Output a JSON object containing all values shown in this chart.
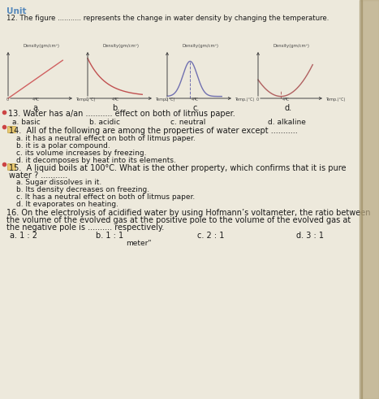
{
  "page_bg": "#ede9dc",
  "unit_text": "Unit",
  "q12_line1": "12. The figure ........... represents the change in water density by changing the temperature.",
  "density_label": "Density(gm/cm³)",
  "temp_label": "Temp.(°C)",
  "q13_text": "13. Water has a/an ........... effect on both of litmus paper.",
  "q13_a": "a. basic",
  "q13_b": "b. acidic",
  "q13_c": "c. neutral",
  "q13_d": "d. alkaline",
  "q14_text": "14.  All of the following are among the properties of water except ...........",
  "q14_a": "a. it has a neutral effect on both of litmus paper.",
  "q14_b": "b. it is a polar compound.",
  "q14_c": "c. its volume increases by freezing.",
  "q14_d": "d. it decomposes by heat into its elements.",
  "q15_line1": "15.  A liquid boils at 100°C. What is the other property, which confirms that it is pure",
  "q15_line2": "water ? ...........",
  "q15_a": "a. Sugar dissolves in it.",
  "q15_b": "b. Its density decreases on freezing.",
  "q15_c": "c. It has a neutral effect on both of litmus paper.",
  "q15_d": "d. It evaporates on heating.",
  "q16_line1": "16. On the electrolysis of acidified water by using Hofmann’s voltameter, the ratio between",
  "q16_line2": "the volume of the evolved gas at the positive pole to the volume of the evolved gas at",
  "q16_line3": "the negative pole is .......... respectively.",
  "q16_a": "a. 1 : 2",
  "q16_b": "b. 1 : 1",
  "q16_c": "c. 2 : 1",
  "q16_d": "d. 3 : 1",
  "footer_text": "meter\"",
  "curve_color_a": "#d06060",
  "curve_color_b": "#c05050",
  "curve_color_c": "#7070b0",
  "curve_color_d": "#b06060",
  "axis_color": "#444444",
  "text_color": "#1a1a1a",
  "blue_text": "#5588bb",
  "bullet_color": "#7aaa77",
  "red_bullet": "#cc4444",
  "right_edge_color": "#c0b090"
}
